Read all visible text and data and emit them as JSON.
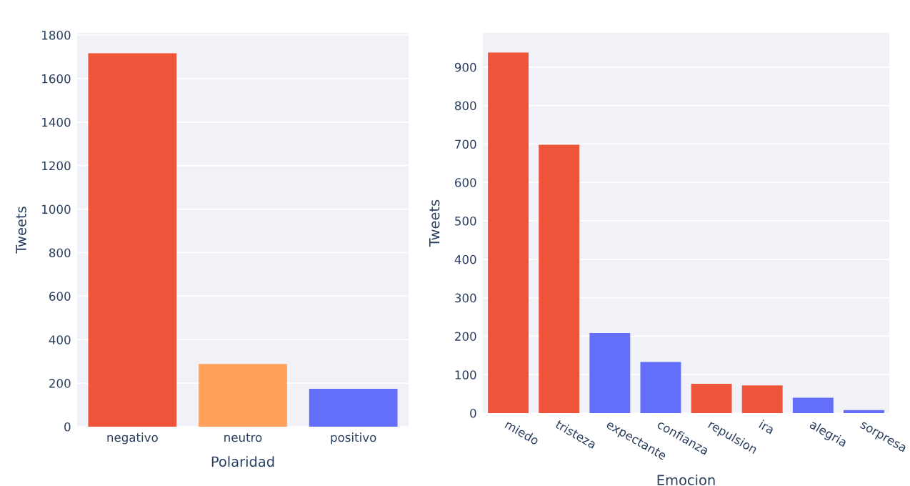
{
  "chart_data": [
    {
      "type": "bar",
      "xlabel": "Polaridad",
      "ylabel": "Tweets",
      "categories": [
        "negativo",
        "neutro",
        "positivo"
      ],
      "values": [
        1716,
        288,
        174
      ],
      "colors": [
        "#ef553b",
        "#ffa15a",
        "#636efa"
      ],
      "ylim": [
        0,
        1810
      ],
      "yticks": [
        0,
        200,
        400,
        600,
        800,
        1000,
        1200,
        1400,
        1600,
        1800
      ],
      "grid": "y"
    },
    {
      "type": "bar",
      "xlabel": "Emocion",
      "ylabel": "Tweets",
      "categories": [
        "miedo",
        "tristeza",
        "expectante",
        "confianza",
        "repulsion",
        "ira",
        "alegria",
        "sorpresa"
      ],
      "values": [
        938,
        698,
        208,
        133,
        76,
        72,
        40,
        8
      ],
      "colors": [
        "#ef553b",
        "#ef553b",
        "#636efa",
        "#636efa",
        "#ef553b",
        "#ef553b",
        "#636efa",
        "#636efa"
      ],
      "ylim": [
        0,
        989
      ],
      "yticks": [
        0,
        100,
        200,
        300,
        400,
        500,
        600,
        700,
        800,
        900
      ],
      "grid": "y"
    }
  ]
}
